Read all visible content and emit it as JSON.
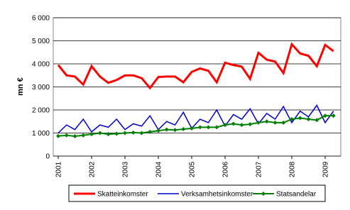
{
  "chart_data": {
    "type": "line",
    "y_label": "mn €",
    "categories": [
      "2001",
      null,
      null,
      null,
      "2002",
      null,
      null,
      null,
      "2003",
      null,
      null,
      null,
      "2004",
      null,
      null,
      null,
      "2005",
      null,
      null,
      null,
      "2006",
      null,
      null,
      null,
      "2007",
      null,
      null,
      null,
      "2008",
      null,
      null,
      null,
      "2009",
      null
    ],
    "series": [
      {
        "name": "Skatteinkomster",
        "color": "#ff0000",
        "values": [
          3950,
          3500,
          3450,
          3100,
          3900,
          3450,
          3180,
          3300,
          3500,
          3500,
          3380,
          2950,
          3430,
          3450,
          3450,
          3200,
          3650,
          3800,
          3700,
          3200,
          4050,
          3950,
          3880,
          3350,
          4480,
          4180,
          4100,
          3600,
          4850,
          4450,
          4350,
          3900,
          4820,
          4550
        ]
      },
      {
        "name": "Verksamhetsinkomster",
        "color": "#0000cc",
        "values": [
          1000,
          1350,
          1150,
          1600,
          1050,
          1350,
          1250,
          1600,
          1150,
          1400,
          1300,
          1750,
          1150,
          1500,
          1350,
          1900,
          1200,
          1600,
          1450,
          2000,
          1300,
          1800,
          1600,
          2050,
          1400,
          1850,
          1600,
          2150,
          1450,
          1950,
          1700,
          2200,
          1450,
          1950
        ]
      },
      {
        "name": "Statsandelar",
        "color": "#008000",
        "values": [
          870,
          900,
          860,
          900,
          950,
          1000,
          950,
          970,
          1000,
          1020,
          1000,
          1050,
          1100,
          1150,
          1130,
          1170,
          1200,
          1250,
          1250,
          1250,
          1350,
          1400,
          1350,
          1380,
          1450,
          1500,
          1450,
          1450,
          1600,
          1650,
          1600,
          1560,
          1750,
          1750
        ]
      }
    ],
    "ylim": [
      0,
      6000
    ],
    "yticks": [
      0,
      {
        "value": 1000,
        "label": "1 000"
      },
      {
        "value": 2000,
        "label": "2 000"
      },
      {
        "value": 3000,
        "label": "3 000"
      },
      {
        "value": 4000,
        "label": "4 000"
      },
      {
        "value": 5000,
        "label": "5 000"
      },
      {
        "value": 6000,
        "label": "6 000"
      }
    ],
    "grid": true,
    "legend": "bottom"
  }
}
